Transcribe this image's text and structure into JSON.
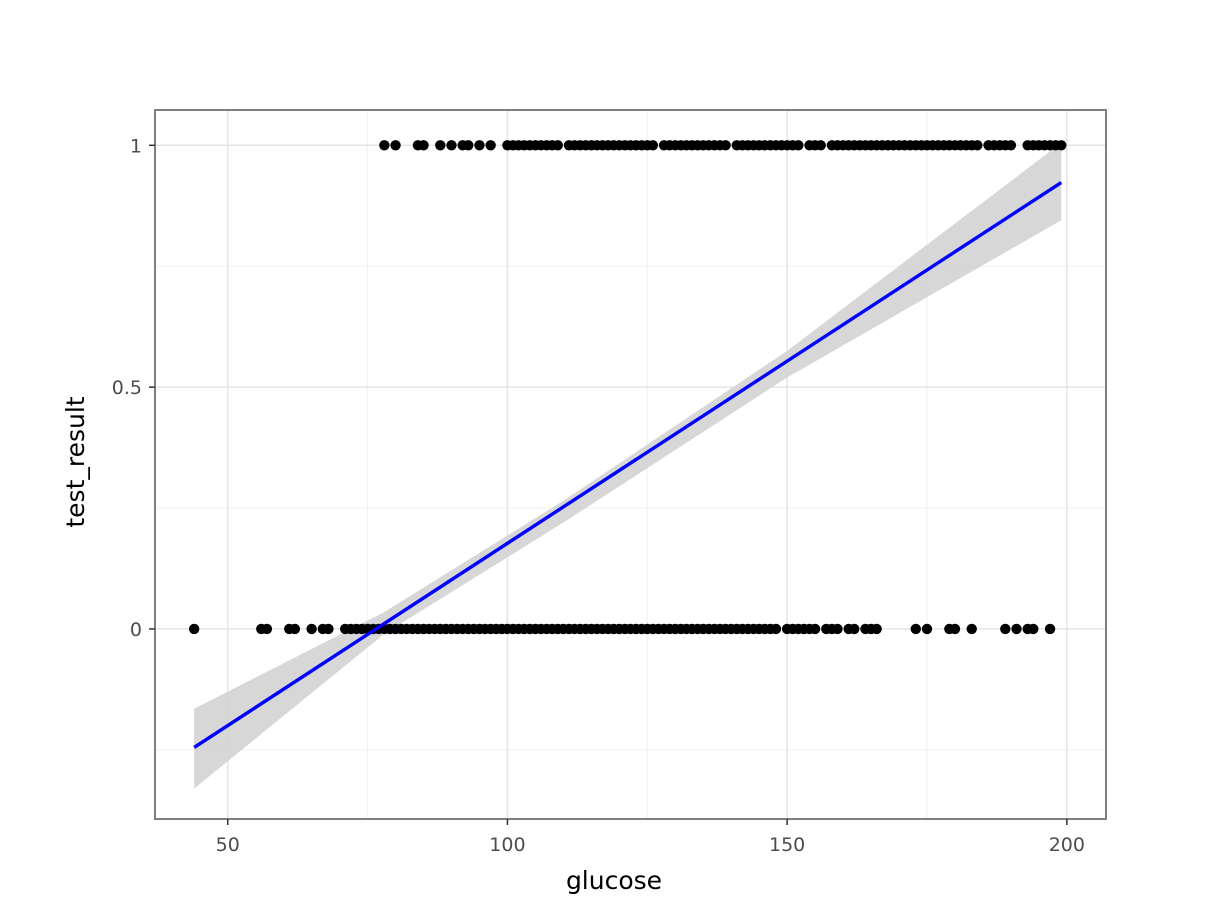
{
  "chart_data": {
    "type": "scatter",
    "title": "",
    "xlabel": "glucose",
    "ylabel": "test_result",
    "xlim": [
      37,
      207
    ],
    "ylim": [
      -0.393,
      1.073
    ],
    "x_ticks": [
      50,
      100,
      150,
      200
    ],
    "x_tick_labels": [
      "50",
      "100",
      "150",
      "200"
    ],
    "y_ticks": [
      0,
      0.5,
      1
    ],
    "y_tick_labels": [
      "0",
      "0.5",
      "1"
    ],
    "x_minor_ticks": [
      75,
      125,
      175
    ],
    "y_minor_ticks": [
      -0.25,
      0.25,
      0.75
    ],
    "grid": true,
    "legend": "none",
    "series": [
      {
        "kind": "points",
        "y": 0,
        "x": [
          44,
          56,
          57,
          61,
          62,
          65,
          67,
          68,
          71,
          72,
          73,
          74,
          75,
          76,
          77,
          78,
          79,
          80,
          81,
          82,
          83,
          84,
          85,
          86,
          87,
          88,
          89,
          90,
          91,
          92,
          93,
          94,
          95,
          96,
          97,
          98,
          99,
          100,
          101,
          102,
          103,
          104,
          105,
          106,
          107,
          108,
          109,
          110,
          111,
          112,
          113,
          114,
          115,
          116,
          117,
          118,
          119,
          120,
          121,
          122,
          123,
          124,
          125,
          126,
          127,
          128,
          129,
          130,
          131,
          132,
          133,
          134,
          135,
          136,
          137,
          138,
          139,
          140,
          141,
          142,
          143,
          144,
          145,
          146,
          147,
          148,
          150,
          151,
          152,
          153,
          154,
          155,
          157,
          158,
          159,
          161,
          162,
          164,
          165,
          166,
          173,
          175,
          179,
          180,
          183,
          189,
          191,
          193,
          194,
          197
        ]
      },
      {
        "kind": "points",
        "y": 1,
        "x": [
          78,
          80,
          84,
          85,
          88,
          90,
          92,
          93,
          95,
          97,
          100,
          101,
          102,
          103,
          104,
          105,
          106,
          107,
          108,
          109,
          111,
          112,
          113,
          114,
          115,
          116,
          117,
          118,
          119,
          120,
          121,
          122,
          123,
          124,
          125,
          126,
          128,
          129,
          130,
          131,
          132,
          133,
          134,
          135,
          136,
          137,
          138,
          139,
          141,
          142,
          143,
          144,
          145,
          146,
          147,
          148,
          149,
          150,
          151,
          152,
          154,
          155,
          156,
          158,
          159,
          160,
          161,
          162,
          163,
          164,
          165,
          166,
          167,
          168,
          169,
          170,
          171,
          172,
          173,
          174,
          175,
          176,
          177,
          178,
          179,
          180,
          181,
          182,
          183,
          184,
          186,
          187,
          188,
          189,
          190,
          193,
          194,
          195,
          196,
          197,
          198,
          199
        ]
      },
      {
        "kind": "fit-line",
        "color": "#0000ff",
        "x": [
          44,
          199
        ],
        "y": [
          -0.245,
          0.923
        ]
      },
      {
        "kind": "confidence-band",
        "color": "#d3d3d3",
        "x": [
          44,
          78,
          110,
          150,
          199
        ],
        "lower": [
          -0.33,
          -0.01,
          0.22,
          0.52,
          0.845
        ],
        "upper": [
          -0.165,
          0.035,
          0.265,
          0.575,
          1.005
        ]
      }
    ],
    "colors": {
      "points": "#000000",
      "line": "#0000ff",
      "band": "#d3d3d3",
      "panel_border": "#7f7f7f",
      "grid_major": "#e5e5e5",
      "grid_minor": "#f3f3f3",
      "tick_text": "#4d4d4d"
    }
  }
}
